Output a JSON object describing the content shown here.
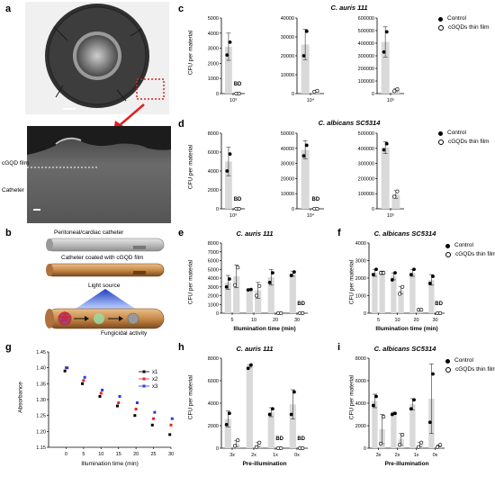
{
  "panels": {
    "a": "a",
    "b": "b",
    "c": "c",
    "d": "d",
    "e": "e",
    "f": "f",
    "g": "g",
    "h": "h",
    "i": "i"
  },
  "panel_a": {
    "label_film": "cGQD film",
    "label_catheter": "Catheter"
  },
  "panel_b": {
    "caption_top": "Peritoneal/cardiac catheter",
    "caption_coated": "Catheter coated with cGQD film",
    "light_source": "Light source",
    "fungicidal": "Fungicidal activity"
  },
  "legend": {
    "control": "Control",
    "film": "cGQDs thin film"
  },
  "common": {
    "ylabel_cfu": "CFU per material",
    "bd": "BD"
  },
  "chart_data": [
    {
      "id": "c1",
      "type": "bar",
      "title": "C. auris 111",
      "categories": [
        "10³"
      ],
      "ylim": [
        0,
        5000
      ],
      "yticks": [
        0,
        1000,
        2000,
        3000,
        4000,
        5000
      ],
      "ylabel": "CFU per material",
      "series": [
        {
          "name": "Control",
          "values": [
            3100
          ],
          "err": [
            900
          ],
          "points": [
            [
              2550,
              3400
            ]
          ]
        },
        {
          "name": "cGQDs thin film",
          "values": [
            0
          ],
          "err": [
            0
          ],
          "points": [
            [
              0,
              0
            ]
          ],
          "bd": [
            true
          ]
        }
      ]
    },
    {
      "id": "c2",
      "type": "bar",
      "title": "",
      "categories": [
        "10⁴"
      ],
      "ylim": [
        0,
        40000
      ],
      "yticks": [
        0,
        10000,
        20000,
        30000,
        40000
      ],
      "ylabel": "",
      "series": [
        {
          "name": "Control",
          "values": [
            26000
          ],
          "err": [
            8000
          ],
          "points": [
            [
              20000,
              33000
            ]
          ]
        },
        {
          "name": "cGQDs thin film",
          "values": [
            1200
          ],
          "err": [
            200
          ],
          "points": [
            [
              1000,
              1500
            ]
          ]
        }
      ]
    },
    {
      "id": "c3",
      "type": "bar",
      "title": "",
      "categories": [
        "10⁵"
      ],
      "ylim": [
        0,
        600000
      ],
      "yticks": [
        0,
        100000,
        200000,
        300000,
        400000,
        500000,
        600000
      ],
      "ylabel": "",
      "series": [
        {
          "name": "Control",
          "values": [
            410000
          ],
          "err": [
            120000
          ],
          "points": [
            [
              330000,
              490000
            ]
          ]
        },
        {
          "name": "cGQDs thin film",
          "values": [
            30000
          ],
          "err": [
            10000
          ],
          "points": [
            [
              20000,
              35000
            ]
          ]
        }
      ]
    },
    {
      "id": "d1",
      "type": "bar",
      "title": "C. albicans SC5314",
      "categories": [
        "10³"
      ],
      "ylim": [
        0,
        8000
      ],
      "yticks": [
        0,
        2000,
        4000,
        6000,
        8000
      ],
      "ylabel": "CFU per material",
      "series": [
        {
          "name": "Control",
          "values": [
            5000
          ],
          "err": [
            1500
          ],
          "points": [
            [
              4000,
              5800
            ]
          ]
        },
        {
          "name": "cGQDs thin film",
          "values": [
            0
          ],
          "err": [
            0
          ],
          "points": [
            [
              0,
              0
            ]
          ],
          "bd": [
            true
          ]
        }
      ]
    },
    {
      "id": "d2",
      "type": "bar",
      "title": "",
      "categories": [
        "10⁴"
      ],
      "ylim": [
        0,
        50000
      ],
      "yticks": [
        0,
        10000,
        20000,
        30000,
        40000,
        50000
      ],
      "ylabel": "",
      "series": [
        {
          "name": "Control",
          "values": [
            39000
          ],
          "err": [
            6000
          ],
          "points": [
            [
              35000,
              42000
            ]
          ]
        },
        {
          "name": "cGQDs thin film",
          "values": [
            0
          ],
          "err": [
            0
          ],
          "points": [
            [
              0,
              0
            ]
          ],
          "bd": [
            true
          ]
        }
      ]
    },
    {
      "id": "d3",
      "type": "bar",
      "title": "",
      "categories": [
        "10⁵"
      ],
      "ylim": [
        0,
        500000
      ],
      "yticks": [
        0,
        100000,
        200000,
        300000,
        400000,
        500000
      ],
      "ylabel": "",
      "series": [
        {
          "name": "Control",
          "values": [
            405000
          ],
          "err": [
            40000
          ],
          "points": [
            [
              390000,
              430000
            ]
          ]
        },
        {
          "name": "cGQDs thin film",
          "values": [
            95000
          ],
          "err": [
            25000
          ],
          "points": [
            [
              80000,
              115000
            ]
          ]
        }
      ]
    },
    {
      "id": "e",
      "type": "bar",
      "title": "C. auris 111",
      "categories": [
        "5",
        "10",
        "20",
        "30"
      ],
      "xlabel": "Illumination time (min)",
      "ylim": [
        0,
        8000
      ],
      "yticks": [
        0,
        1000,
        2000,
        3000,
        4000,
        5000,
        6000,
        7000,
        8000
      ],
      "ylabel": "CFU per material",
      "series": [
        {
          "name": "Control",
          "values": [
            3500,
            2700,
            4100,
            4500
          ],
          "err": [
            800,
            0,
            900,
            300
          ],
          "points": [
            [
              3000,
              3900
            ],
            [
              2650,
              2700
            ],
            [
              3500,
              4600
            ],
            [
              4300,
              4700
            ]
          ]
        },
        {
          "name": "cGQDs thin film",
          "values": [
            4200,
            2600,
            0,
            0
          ],
          "err": [
            1300,
            900,
            0,
            0
          ],
          "points": [
            [
              3200,
              5200
            ],
            [
              2000,
              3100
            ],
            [
              0,
              0
            ],
            [
              0,
              0
            ]
          ],
          "bd": [
            false,
            false,
            false,
            true
          ]
        }
      ]
    },
    {
      "id": "f",
      "type": "bar",
      "title": "C. albicans SC5314",
      "categories": [
        "5",
        "10",
        "20",
        "30"
      ],
      "xlabel": "Illumination time (min)",
      "ylim": [
        0,
        4000
      ],
      "yticks": [
        0,
        1000,
        2000,
        3000,
        4000
      ],
      "ylabel": "CFU per material",
      "series": [
        {
          "name": "Control",
          "values": [
            2300,
            2100,
            2300,
            1900
          ],
          "err": [
            200,
            200,
            200,
            300
          ],
          "points": [
            [
              2200,
              2500
            ],
            [
              1900,
              2300
            ],
            [
              2200,
              2500
            ],
            [
              1700,
              2100
            ]
          ]
        },
        {
          "name": "cGQDs thin film",
          "values": [
            2300,
            1300,
            200,
            0
          ],
          "err": [
            100,
            200,
            50,
            0
          ],
          "points": [
            [
              2300,
              2300
            ],
            [
              1100,
              1500
            ],
            [
              200,
              200
            ],
            [
              0,
              0
            ]
          ],
          "bd": [
            false,
            false,
            false,
            true
          ]
        }
      ]
    },
    {
      "id": "g",
      "type": "scatter",
      "title": "",
      "x": [
        0,
        5,
        10,
        15,
        20,
        25,
        30
      ],
      "xlabel": "Illumination time (min)",
      "ylabel": "Absorbance",
      "xlim": [
        -5,
        30
      ],
      "xticks": [
        0,
        5,
        10,
        15,
        20,
        25,
        30
      ],
      "ylim": [
        1.15,
        1.45
      ],
      "yticks": [
        1.15,
        1.2,
        1.25,
        1.3,
        1.35,
        1.4,
        1.45
      ],
      "series": [
        {
          "name": "x1",
          "color": "#000000",
          "values": [
            1.39,
            1.35,
            1.31,
            1.28,
            1.25,
            1.22,
            1.19
          ]
        },
        {
          "name": "x2",
          "color": "#e8202a",
          "values": [
            1.4,
            1.36,
            1.32,
            1.29,
            1.27,
            1.24,
            1.22
          ]
        },
        {
          "name": "x3",
          "color": "#2a38e8",
          "values": [
            1.4,
            1.37,
            1.33,
            1.31,
            1.29,
            1.26,
            1.24
          ]
        }
      ]
    },
    {
      "id": "h",
      "type": "bar",
      "title": "C. auris 111",
      "categories": [
        "3x",
        "2x",
        "1x",
        "0x"
      ],
      "xlabel": "Pre-illumination",
      "ylim": [
        0,
        8000
      ],
      "yticks": [
        0,
        2000,
        4000,
        6000,
        8000
      ],
      "ylabel": "CFU per material",
      "series": [
        {
          "name": "Control",
          "values": [
            2600,
            7300,
            3200,
            3900
          ],
          "err": [
            700,
            100,
            400,
            1300
          ],
          "points": [
            [
              2100,
              3100
            ],
            [
              7100,
              7400
            ],
            [
              3000,
              3500
            ],
            [
              3000,
              5000
            ]
          ]
        },
        {
          "name": "cGQDs thin film",
          "values": [
            400,
            300,
            0,
            0
          ],
          "err": [
            300,
            200,
            0,
            0
          ],
          "points": [
            [
              200,
              700
            ],
            [
              100,
              500
            ],
            [
              0,
              0
            ],
            [
              0,
              0
            ]
          ],
          "bd": [
            false,
            false,
            true,
            true
          ]
        }
      ]
    },
    {
      "id": "i",
      "type": "bar",
      "title": "C. albicans SC5314",
      "categories": [
        "3x",
        "2x",
        "1x",
        "0x"
      ],
      "xlabel": "Pre-illumination",
      "ylim": [
        0,
        8000
      ],
      "yticks": [
        0,
        2000,
        4000,
        6000,
        8000
      ],
      "ylabel": "CFU per material",
      "series": [
        {
          "name": "Control",
          "values": [
            4200,
            3100,
            3900,
            4400
          ],
          "err": [
            600,
            100,
            500,
            3100
          ],
          "points": [
            [
              3800,
              4600
            ],
            [
              3000,
              3100
            ],
            [
              3500,
              4300
            ],
            [
              2300,
              6600
            ]
          ]
        },
        {
          "name": "cGQDs thin film",
          "values": [
            1700,
            800,
            300,
            200
          ],
          "err": [
            1300,
            500,
            200,
            100
          ],
          "points": [
            [
              400,
              2800
            ],
            [
              300,
              1200
            ],
            [
              100,
              500
            ],
            [
              100,
              300
            ]
          ]
        }
      ]
    }
  ]
}
